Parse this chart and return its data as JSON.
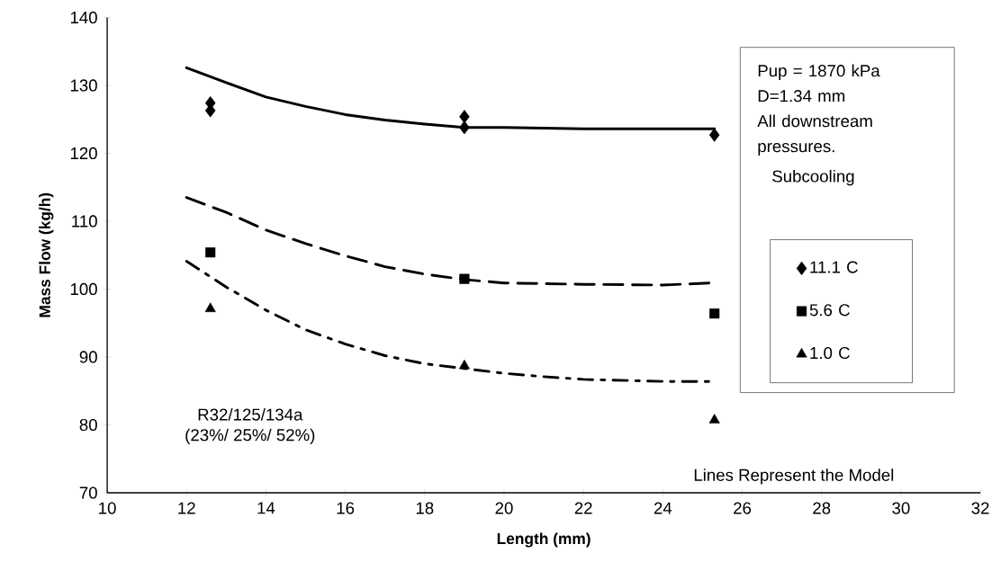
{
  "chart_data": {
    "type": "scatter",
    "xlabel": "Length (mm)",
    "ylabel": "Mass Flow (kg/h)",
    "legend_title": "Subcooling",
    "legend": "right",
    "grid": false,
    "xlim": [
      10,
      32
    ],
    "xticks": [
      10,
      12,
      14,
      16,
      18,
      20,
      22,
      24,
      26,
      28,
      30,
      32
    ],
    "ylim": [
      70,
      140
    ],
    "yticks": [
      70,
      80,
      90,
      100,
      110,
      120,
      130,
      140
    ],
    "annotations": [
      "Pup = 1870 kPa",
      "D=1.34 mm",
      "All downstream pressures.",
      "R32/125/134a",
      "(23%/ 25%/ 52%)",
      "Lines Represent the Model"
    ],
    "series": [
      {
        "name": "11.1 C",
        "marker": "diamond",
        "color": "#000000",
        "x": [
          12.6,
          12.6,
          19.0,
          19.0,
          25.3
        ],
        "values": [
          127.4,
          126.3,
          125.4,
          123.8,
          122.7
        ]
      },
      {
        "name": "5.6 C",
        "marker": "square",
        "color": "#000000",
        "x": [
          12.6,
          19.0,
          25.3
        ],
        "values": [
          105.4,
          101.5,
          96.4
        ]
      },
      {
        "name": "1.0 C",
        "marker": "triangle",
        "color": "#000000",
        "x": [
          12.6,
          19.0,
          25.3
        ],
        "values": [
          97.1,
          88.7,
          80.7
        ]
      },
      {
        "type": "line",
        "line_style": "solid",
        "color": "#000000",
        "x": [
          12,
          13,
          14,
          15,
          16,
          17,
          18,
          19,
          20,
          22,
          24,
          25.3
        ],
        "values": [
          132.6,
          130.4,
          128.3,
          126.9,
          125.7,
          124.9,
          124.3,
          123.8,
          123.8,
          123.6,
          123.6,
          123.6
        ]
      },
      {
        "type": "line",
        "line_style": "dashed",
        "color": "#000000",
        "x": [
          12,
          13,
          14,
          15,
          16,
          17,
          18,
          19,
          20,
          22,
          24,
          25.2
        ],
        "values": [
          113.5,
          111.3,
          108.7,
          106.7,
          104.9,
          103.3,
          102.2,
          101.4,
          100.9,
          100.7,
          100.6,
          100.9
        ]
      },
      {
        "type": "line",
        "line_style": "dotted",
        "color": "#000000",
        "x": [
          12,
          13,
          14,
          15,
          16,
          17,
          18,
          19,
          20,
          21,
          22,
          24,
          25.2
        ],
        "values": [
          104.1,
          100.3,
          96.9,
          94.0,
          91.9,
          90.2,
          89.0,
          88.3,
          87.6,
          87.1,
          86.7,
          86.4,
          86.4
        ]
      }
    ]
  }
}
